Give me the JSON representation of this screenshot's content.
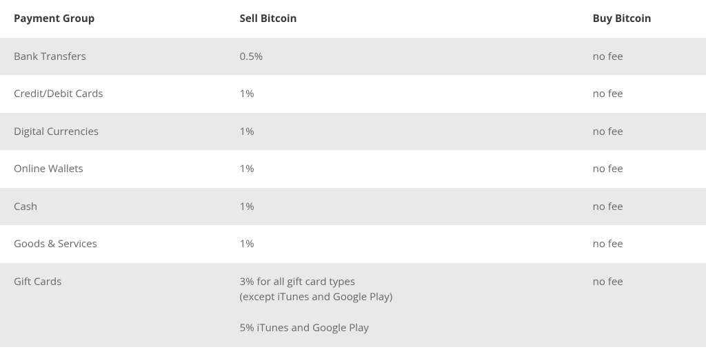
{
  "fee_table": {
    "type": "table",
    "background_odd": "#e9e9ea",
    "background_even": "#ffffff",
    "text_color_header": "#3a3a3a",
    "text_color_body": "#666666",
    "font_size": 15,
    "columns": [
      {
        "key": "payment_group",
        "label": "Payment Group",
        "width_pct": 32
      },
      {
        "key": "sell",
        "label": "Sell Bitcoin",
        "width_pct": 50
      },
      {
        "key": "buy",
        "label": "Buy Bitcoin",
        "width_pct": 18
      }
    ],
    "rows": [
      {
        "payment_group": "Bank Transfers",
        "sell": "0.5%",
        "buy": "no fee"
      },
      {
        "payment_group": "Credit/Debit Cards",
        "sell": "1%",
        "buy": "no fee"
      },
      {
        "payment_group": "Digital Currencies",
        "sell": "1%",
        "buy": "no fee"
      },
      {
        "payment_group": "Online Wallets",
        "sell": "1%",
        "buy": "no fee"
      },
      {
        "payment_group": "Cash",
        "sell": "1%",
        "buy": "no fee"
      },
      {
        "payment_group": "Goods & Services",
        "sell": "1%",
        "buy": "no fee"
      },
      {
        "payment_group": "Gift Cards",
        "sell": "3% for all gift card types\n(except iTunes and Google Play)\n\n5% iTunes and Google Play",
        "buy": "no fee"
      }
    ]
  }
}
